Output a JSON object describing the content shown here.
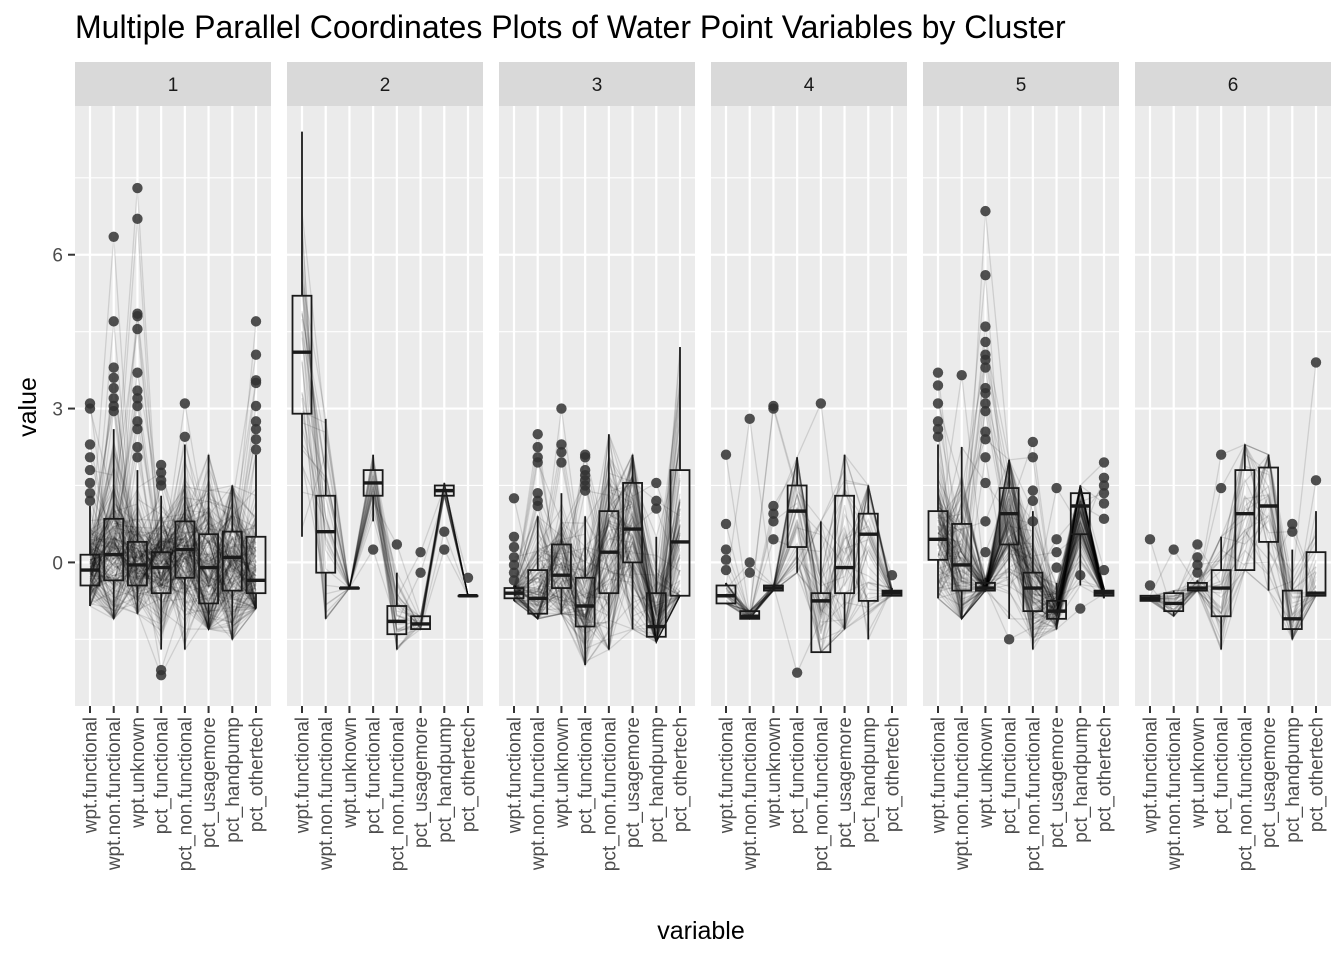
{
  "chart_data": {
    "type": "parallel-coordinates-boxplot",
    "title": "Multiple Parallel Coordinates Plots of Water Point Variables by Cluster",
    "xlabel": "variable",
    "ylabel": "value",
    "ylim": [
      -2.8,
      8.9
    ],
    "y_ticks": [
      0,
      3,
      6
    ],
    "grid": true,
    "legend": "none",
    "colors": {
      "panel_bg": "#ebebeb",
      "strip_bg": "#d9d9d9",
      "grid": "#ffffff",
      "line": "#000000",
      "point": "#333333"
    },
    "variables": [
      "wpt.functional",
      "wpt.non.functional",
      "wpt.unknown",
      "pct_functional",
      "pct_non.functional",
      "pct_usagemore",
      "pct_handpump",
      "pct_othertech"
    ],
    "clusters": [
      {
        "name": "1",
        "lines": 150,
        "boxes": [
          {
            "q1": -0.45,
            "med": -0.15,
            "q3": 0.15,
            "lo": -0.85,
            "hi": 1.1
          },
          {
            "q1": -0.35,
            "med": 0.15,
            "q3": 0.85,
            "lo": -1.1,
            "hi": 2.6
          },
          {
            "q1": -0.45,
            "med": -0.05,
            "q3": 0.4,
            "lo": -1.0,
            "hi": 1.8
          },
          {
            "q1": -0.6,
            "med": -0.1,
            "q3": 0.2,
            "lo": -1.7,
            "hi": 1.3
          },
          {
            "q1": -0.3,
            "med": 0.25,
            "q3": 0.8,
            "lo": -1.7,
            "hi": 2.3
          },
          {
            "q1": -0.8,
            "med": -0.1,
            "q3": 0.55,
            "lo": -1.3,
            "hi": 2.1
          },
          {
            "q1": -0.55,
            "med": 0.1,
            "q3": 0.6,
            "lo": -1.5,
            "hi": 1.5
          },
          {
            "q1": -0.6,
            "med": -0.35,
            "q3": 0.5,
            "lo": -0.9,
            "hi": 2.1
          }
        ],
        "outliers": [
          [
            3.1,
            3.0,
            2.3,
            2.05,
            1.8,
            1.55,
            1.35,
            1.2
          ],
          [
            6.35,
            4.7,
            3.8,
            3.6,
            3.4,
            3.2,
            3.05,
            2.95
          ],
          [
            7.3,
            6.7,
            4.85,
            4.8,
            4.55,
            3.7,
            3.35,
            3.2,
            3.05,
            2.75,
            2.6,
            2.25,
            2.05
          ],
          [
            1.9,
            1.75,
            1.6,
            1.5,
            -2.1,
            -2.2
          ],
          [
            3.1,
            2.45
          ],
          [],
          [],
          [
            4.7,
            4.05,
            3.55,
            3.5,
            3.05,
            2.75,
            2.6,
            2.4,
            2.2
          ]
        ]
      },
      {
        "name": "2",
        "lines": 25,
        "boxes": [
          {
            "q1": 2.9,
            "med": 4.1,
            "q3": 5.2,
            "lo": 0.5,
            "hi": 8.4
          },
          {
            "q1": -0.2,
            "med": 0.6,
            "q3": 1.3,
            "lo": -1.1,
            "hi": 2.8
          },
          {
            "q1": -0.5,
            "med": -0.5,
            "q3": -0.5,
            "lo": -0.5,
            "hi": -0.5
          },
          {
            "q1": 1.3,
            "med": 1.55,
            "q3": 1.8,
            "lo": 0.8,
            "hi": 2.1
          },
          {
            "q1": -1.4,
            "med": -1.15,
            "q3": -0.85,
            "lo": -1.7,
            "hi": -0.2
          },
          {
            "q1": -1.3,
            "med": -1.2,
            "q3": -1.05,
            "lo": -1.3,
            "hi": -1.05
          },
          {
            "q1": 1.3,
            "med": 1.4,
            "q3": 1.5,
            "lo": 1.3,
            "hi": 1.55
          },
          {
            "q1": -0.65,
            "med": -0.65,
            "q3": -0.65,
            "lo": -0.65,
            "hi": -0.65
          }
        ],
        "outliers": [
          [],
          [],
          [],
          [
            0.25
          ],
          [
            0.35
          ],
          [
            0.2,
            -0.2
          ],
          [
            0.6,
            0.25
          ],
          [
            -0.3
          ]
        ]
      },
      {
        "name": "3",
        "lines": 90,
        "boxes": [
          {
            "q1": -0.7,
            "med": -0.6,
            "q3": -0.5,
            "lo": -0.75,
            "hi": -0.45
          },
          {
            "q1": -1.0,
            "med": -0.7,
            "q3": -0.15,
            "lo": -1.1,
            "hi": 0.9
          },
          {
            "q1": -0.5,
            "med": -0.25,
            "q3": 0.35,
            "lo": -1.0,
            "hi": 1.35
          },
          {
            "q1": -1.25,
            "med": -0.85,
            "q3": -0.3,
            "lo": -2.0,
            "hi": 0.9
          },
          {
            "q1": -0.6,
            "med": 0.2,
            "q3": 1.0,
            "lo": -1.7,
            "hi": 2.5
          },
          {
            "q1": 0.0,
            "med": 0.65,
            "q3": 1.55,
            "lo": -1.3,
            "hi": 2.1
          },
          {
            "q1": -1.45,
            "med": -1.25,
            "q3": -0.6,
            "lo": -1.55,
            "hi": 0.5
          },
          {
            "q1": -0.65,
            "med": 0.4,
            "q3": 1.8,
            "lo": -0.65,
            "hi": 4.2
          }
        ],
        "outliers": [
          [
            1.25,
            0.5,
            0.3,
            0.1,
            -0.05,
            -0.2,
            -0.35
          ],
          [
            2.5,
            2.25,
            2.05,
            1.95,
            1.35,
            1.2,
            1.1
          ],
          [
            3.0,
            2.3,
            2.15,
            1.95
          ],
          [
            2.1,
            2.05,
            1.8,
            1.7,
            1.6,
            1.5,
            1.4
          ],
          [],
          [],
          [
            1.55,
            1.2,
            1.05
          ],
          []
        ]
      },
      {
        "name": "4",
        "lines": 30,
        "boxes": [
          {
            "q1": -0.8,
            "med": -0.65,
            "q3": -0.45,
            "lo": -0.8,
            "hi": -0.4
          },
          {
            "q1": -1.1,
            "med": -1.05,
            "q3": -0.95,
            "lo": -1.1,
            "hi": -0.95
          },
          {
            "q1": -0.55,
            "med": -0.5,
            "q3": -0.45,
            "lo": -0.55,
            "hi": -0.45
          },
          {
            "q1": 0.3,
            "med": 1.0,
            "q3": 1.5,
            "lo": -0.2,
            "hi": 2.05
          },
          {
            "q1": -1.75,
            "med": -0.75,
            "q3": -0.6,
            "lo": -1.75,
            "hi": 0.8
          },
          {
            "q1": -0.6,
            "med": -0.1,
            "q3": 1.3,
            "lo": -1.3,
            "hi": 2.1
          },
          {
            "q1": -0.75,
            "med": 0.55,
            "q3": 0.95,
            "lo": -1.5,
            "hi": 1.5
          },
          {
            "q1": -0.65,
            "med": -0.6,
            "q3": -0.55,
            "lo": -0.65,
            "hi": -0.5
          }
        ],
        "outliers": [
          [
            2.1,
            0.75,
            0.25,
            0.05,
            -0.15
          ],
          [
            2.8,
            0.0,
            -0.2
          ],
          [
            3.05,
            3.0,
            1.1,
            0.95,
            0.8,
            0.45
          ],
          [
            -2.15
          ],
          [
            3.1
          ],
          [],
          [],
          [
            -0.25
          ]
        ]
      },
      {
        "name": "5",
        "lines": 90,
        "boxes": [
          {
            "q1": 0.05,
            "med": 0.45,
            "q3": 1.0,
            "lo": -0.7,
            "hi": 2.3
          },
          {
            "q1": -0.55,
            "med": -0.05,
            "q3": 0.75,
            "lo": -1.1,
            "hi": 2.25
          },
          {
            "q1": -0.55,
            "med": -0.5,
            "q3": -0.4,
            "lo": -0.55,
            "hi": -0.3
          },
          {
            "q1": 0.35,
            "med": 0.95,
            "q3": 1.45,
            "lo": -1.1,
            "hi": 2.0
          },
          {
            "q1": -0.95,
            "med": -0.5,
            "q3": -0.2,
            "lo": -1.7,
            "hi": 1.0
          },
          {
            "q1": -1.1,
            "med": -0.95,
            "q3": -0.75,
            "lo": -1.3,
            "hi": -0.4
          },
          {
            "q1": 0.55,
            "med": 1.1,
            "q3": 1.35,
            "lo": -0.45,
            "hi": 1.5
          },
          {
            "q1": -0.65,
            "med": -0.6,
            "q3": -0.55,
            "lo": -0.7,
            "hi": -0.5
          }
        ],
        "outliers": [
          [
            3.7,
            3.45,
            3.1,
            2.75,
            2.6,
            2.45
          ],
          [
            3.65
          ],
          [
            6.85,
            5.6,
            4.6,
            4.3,
            4.05,
            3.95,
            3.8,
            3.4,
            3.3,
            3.1,
            2.95,
            2.55,
            2.4,
            2.05,
            1.55,
            0.8,
            0.2
          ],
          [
            -1.5
          ],
          [
            2.35,
            2.05,
            1.4,
            1.2,
            0.8
          ],
          [
            1.45,
            0.45,
            0.2,
            -0.1
          ],
          [
            -0.25,
            -0.9
          ],
          [
            1.95,
            1.65,
            1.5,
            1.35,
            1.15,
            0.85,
            -0.15
          ]
        ]
      },
      {
        "name": "6",
        "lines": 25,
        "boxes": [
          {
            "q1": -0.75,
            "med": -0.7,
            "q3": -0.65,
            "lo": -0.75,
            "hi": -0.65
          },
          {
            "q1": -0.95,
            "med": -0.8,
            "q3": -0.6,
            "lo": -1.05,
            "hi": -0.55
          },
          {
            "q1": -0.55,
            "med": -0.5,
            "q3": -0.4,
            "lo": -0.55,
            "hi": -0.35
          },
          {
            "q1": -1.05,
            "med": -0.5,
            "q3": -0.15,
            "lo": -1.7,
            "hi": 0.5
          },
          {
            "q1": -0.15,
            "med": 0.95,
            "q3": 1.8,
            "lo": -0.15,
            "hi": 2.3
          },
          {
            "q1": 0.4,
            "med": 1.1,
            "q3": 1.85,
            "lo": -0.55,
            "hi": 2.1
          },
          {
            "q1": -1.3,
            "med": -1.1,
            "q3": -0.55,
            "lo": -1.5,
            "hi": 0.25
          },
          {
            "q1": -0.65,
            "med": -0.6,
            "q3": 0.2,
            "lo": -0.65,
            "hi": 1.0
          }
        ],
        "outliers": [
          [
            0.45,
            -0.45
          ],
          [
            0.25
          ],
          [
            0.35,
            0.1,
            -0.05,
            -0.2
          ],
          [
            2.1,
            1.45
          ],
          [],
          [],
          [
            0.75,
            0.6
          ],
          [
            3.9,
            1.6
          ]
        ]
      }
    ]
  }
}
